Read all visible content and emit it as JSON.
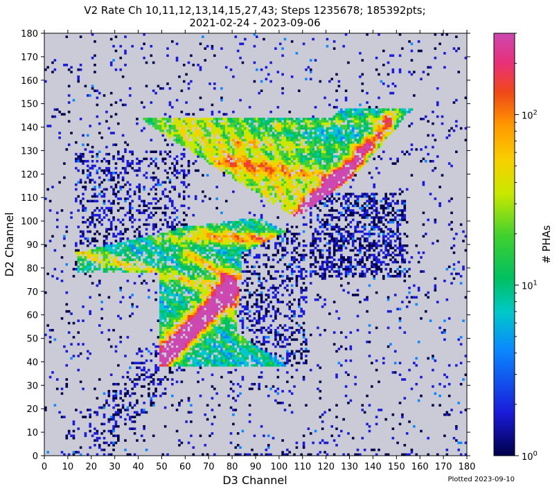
{
  "chart_data": {
    "type": "heatmap",
    "title_line1": "V2 Rate Ch 10,11,12,13,14,15,27,43; Steps 1235678; 185392pts;",
    "title_line2": "2021-02-24 - 2023-09-06",
    "xlabel": "D3 Channel",
    "ylabel": "D2 Channel",
    "xlim": [
      0,
      180
    ],
    "ylim": [
      0,
      180
    ],
    "x_ticks": [
      "0",
      "10",
      "20",
      "30",
      "40",
      "50",
      "60",
      "70",
      "80",
      "90",
      "100",
      "110",
      "120",
      "130",
      "140",
      "150",
      "160",
      "170",
      "180"
    ],
    "y_ticks": [
      "0",
      "10",
      "20",
      "30",
      "40",
      "50",
      "60",
      "70",
      "80",
      "90",
      "100",
      "110",
      "120",
      "130",
      "140",
      "150",
      "160",
      "170",
      "180"
    ],
    "background_color": "#cbcbd7",
    "colorbar": {
      "label": "# PHAs",
      "scale": "log",
      "range": [
        1,
        300
      ],
      "tick_labels": [
        {
          "base": "10",
          "exp": "0",
          "value": 1
        },
        {
          "base": "10",
          "exp": "1",
          "value": 10
        },
        {
          "base": "10",
          "exp": "2",
          "value": 100
        }
      ],
      "colormap": [
        "#00004a",
        "#1a1ad8",
        "#0a88ff",
        "#00c8c8",
        "#00c060",
        "#40d030",
        "#c8e800",
        "#f8d000",
        "#ff9a00",
        "#f04818",
        "#e8307a",
        "#cc48b0"
      ]
    },
    "footnote": "Plotted 2023-09-10"
  }
}
